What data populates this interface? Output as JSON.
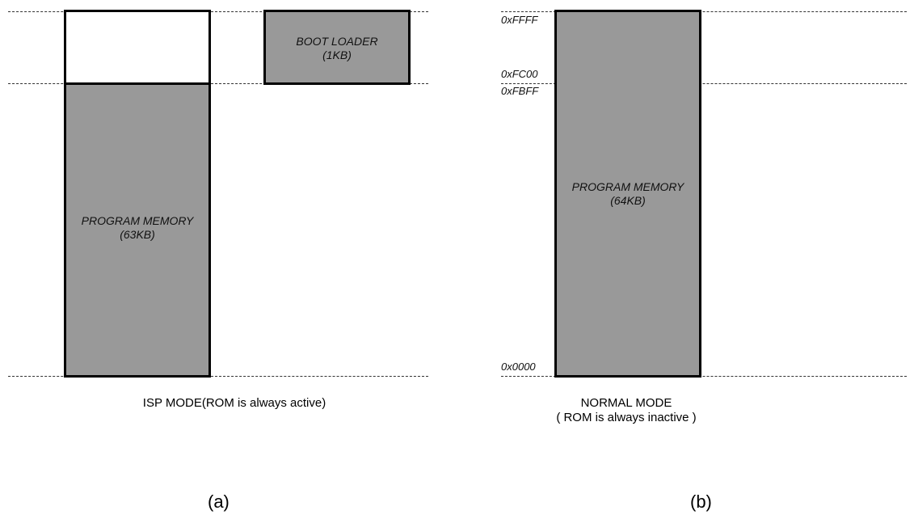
{
  "panel_a": {
    "program_memory": {
      "name": "PROGRAM MEMORY",
      "size": "(63KB)"
    },
    "boot_loader": {
      "name": "BOOT LOADER",
      "size": "(1KB)"
    },
    "caption": "ISP MODE(ROM is always active)",
    "sublabel": "(a)"
  },
  "panel_b": {
    "program_memory": {
      "name": "PROGRAM MEMORY",
      "size": "(64KB)"
    },
    "addresses": {
      "top": "0xFFFF",
      "boot_start": "0xFC00",
      "boot_end": "0xFBFF",
      "bottom": "0x0000"
    },
    "caption_line1": "NORMAL MODE",
    "caption_line2": "( ROM is always inactive )",
    "sublabel": "(b)"
  },
  "colors": {
    "block_fill": "#999999",
    "border": "#000000"
  }
}
